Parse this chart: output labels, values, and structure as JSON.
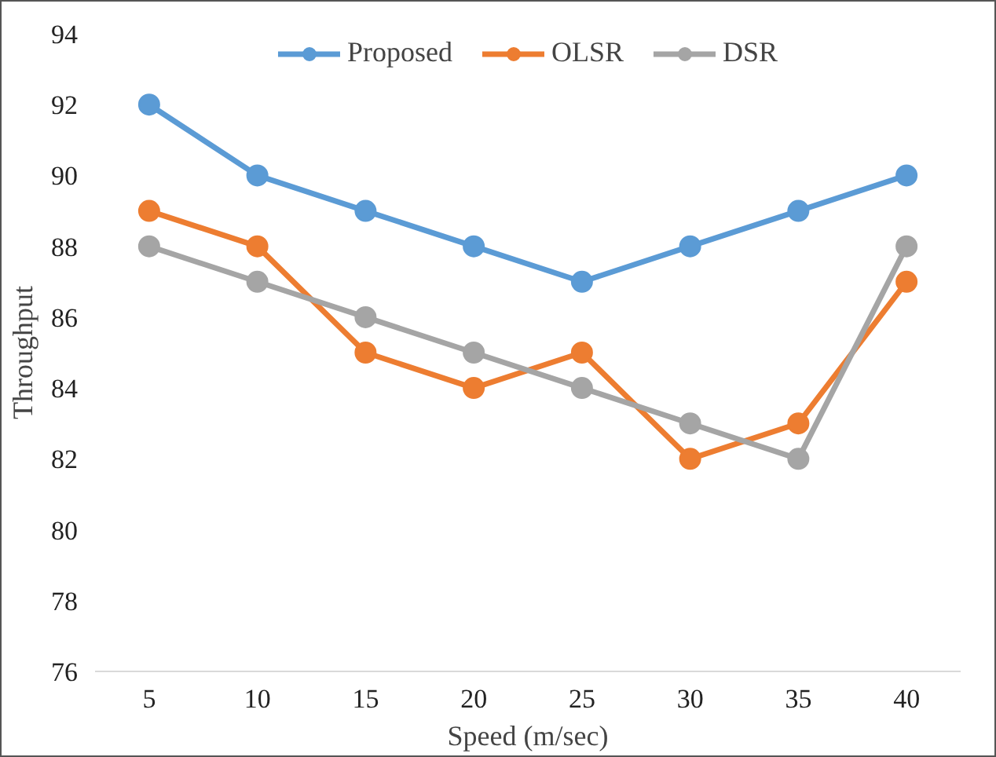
{
  "chart_data": {
    "type": "line",
    "xlabel": "Speed (m/sec)",
    "ylabel": "Throughput",
    "categories": [
      "5",
      "10",
      "15",
      "20",
      "25",
      "30",
      "35",
      "40"
    ],
    "series": [
      {
        "name": "Proposed",
        "color": "#5b9bd5",
        "values": [
          92,
          90,
          89,
          88,
          87,
          88,
          89,
          90
        ]
      },
      {
        "name": "OLSR",
        "color": "#ed7d31",
        "values": [
          89,
          88,
          85,
          84,
          85,
          82,
          83,
          87
        ]
      },
      {
        "name": "DSR",
        "color": "#a5a5a5",
        "values": [
          88,
          87,
          86,
          85,
          84,
          83,
          82,
          88
        ]
      }
    ],
    "ylim": [
      76,
      94
    ],
    "yticks": [
      76,
      78,
      80,
      82,
      84,
      86,
      88,
      90,
      92,
      94
    ],
    "grid": false,
    "legend": "top",
    "marker": "circle",
    "line_style": "solid"
  }
}
